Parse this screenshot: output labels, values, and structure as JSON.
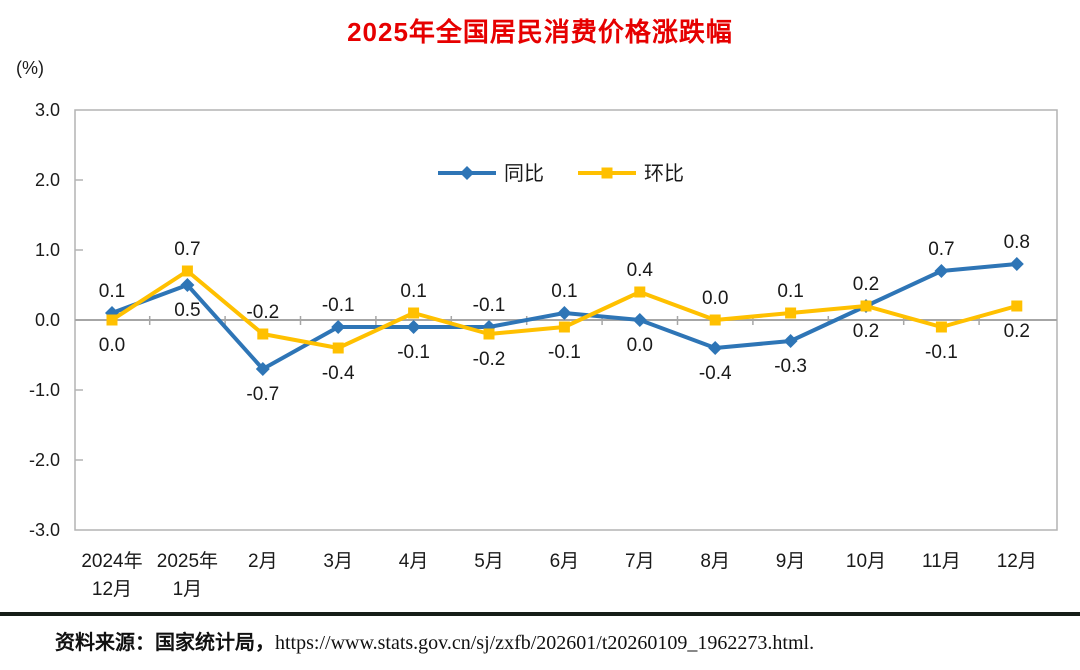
{
  "title": "2025年全国居民消费价格涨跌幅",
  "y_axis_unit": "(%)",
  "footer": {
    "source_label": "资料来源：国家统计局，",
    "source_url": "https://www.stats.gov.cn/sj/zxfb/202601/t20260109_1962273.html."
  },
  "colors": {
    "title": "#e60000",
    "tongbi_blue": "#2E75B6",
    "huanbi_yellow": "#FFC000",
    "axis_border": "#b3b3b3",
    "zero_line": "#a6a6a6",
    "text": "#1a1a1a",
    "divider": "#161d18"
  },
  "chart_data": {
    "type": "line",
    "title": "2025年全国居民消费价格涨跌幅",
    "xlabel": "",
    "ylabel": "(%)",
    "ylim": [
      -3.0,
      3.0
    ],
    "ytick_interval": 1.0,
    "ytick_labels": [
      "3.0",
      "2.0",
      "1.0",
      "0.0",
      "-1.0",
      "-2.0",
      "-3.0"
    ],
    "grid": false,
    "zero_line": true,
    "data_labels": true,
    "legend_position": "top-center-inside",
    "categories": [
      [
        "2024年",
        "12月"
      ],
      [
        "2025年",
        "1月"
      ],
      [
        "2月"
      ],
      [
        "3月"
      ],
      [
        "4月"
      ],
      [
        "5月"
      ],
      [
        "6月"
      ],
      [
        "7月"
      ],
      [
        "8月"
      ],
      [
        "9月"
      ],
      [
        "10月"
      ],
      [
        "11月"
      ],
      [
        "12月"
      ]
    ],
    "series": [
      {
        "name": "同比",
        "marker": "diamond",
        "color": "#2E75B6",
        "values": [
          0.1,
          0.5,
          -0.7,
          -0.1,
          -0.1,
          -0.1,
          0.1,
          0.0,
          -0.4,
          -0.3,
          0.2,
          0.7,
          0.8
        ]
      },
      {
        "name": "环比",
        "marker": "square",
        "color": "#FFC000",
        "values": [
          0.0,
          0.7,
          -0.2,
          -0.4,
          0.1,
          -0.2,
          -0.1,
          0.4,
          0.0,
          0.1,
          0.2,
          -0.1,
          0.2
        ]
      }
    ]
  }
}
